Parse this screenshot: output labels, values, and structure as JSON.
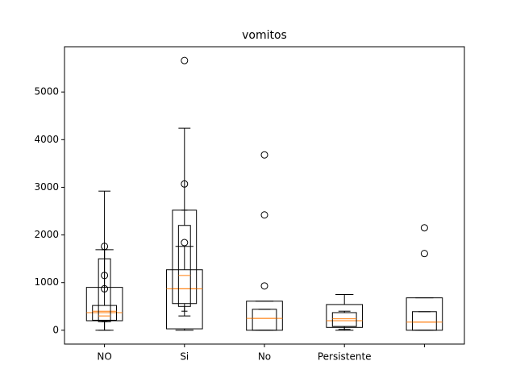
{
  "chart_data": {
    "type": "box",
    "title": "vomitos",
    "categories": [
      "NO",
      "Si",
      "No",
      "Persistente",
      null
    ],
    "ylim": [
      -290,
      5950
    ],
    "yticks": [
      0,
      1000,
      2000,
      3000,
      4000,
      5000
    ],
    "color": "#000000",
    "median_color": "#ff7f0e",
    "series": [
      {
        "boxes": [
          {
            "whislo": 0,
            "q1": 200,
            "med": 370,
            "q3": 900,
            "whishi": 1690,
            "fliers": [
              1760,
              1150,
              870
            ]
          },
          {
            "whislo": 0,
            "q1": 30,
            "med": 870,
            "q3": 1270,
            "whishi": 1760,
            "fliers": [
              5660,
              3070,
              1840
            ]
          },
          {
            "whislo": 0,
            "q1": 0,
            "med": 250,
            "q3": 610,
            "whishi": 610,
            "fliers": [
              3680,
              2420,
              930
            ]
          },
          {
            "whislo": 0,
            "q1": 60,
            "med": 200,
            "q3": 540,
            "whishi": 750
          },
          {
            "whislo": 0,
            "q1": 0,
            "med": 170,
            "q3": 680,
            "whishi": 680,
            "fliers": [
              2150,
              1610
            ]
          }
        ]
      },
      {
        "boxes": [
          {
            "whislo": 0,
            "q1": 210,
            "med": 400,
            "q3": 520,
            "whishi": 2920
          },
          {
            "whislo": 300,
            "q1": 560,
            "med": 870,
            "q3": 2520,
            "whishi": 4240
          },
          {
            "whislo": 0,
            "q1": 0,
            "med": 250,
            "q3": 440,
            "whishi": 440
          },
          {
            "whislo": 20,
            "q1": 80,
            "med": 240,
            "q3": 370,
            "whishi": 400
          },
          {
            "whislo": 0,
            "q1": 0,
            "med": 170,
            "q3": 390,
            "whishi": 390
          }
        ]
      },
      {
        "boxes": [
          {
            "whislo": 180,
            "q1": 180,
            "med": 300,
            "q3": 1500,
            "whishi": 1690
          },
          {
            "whislo": 400,
            "q1": 500,
            "med": 1150,
            "q3": 2200,
            "whishi": 2520
          },
          null,
          null,
          null
        ]
      }
    ]
  }
}
